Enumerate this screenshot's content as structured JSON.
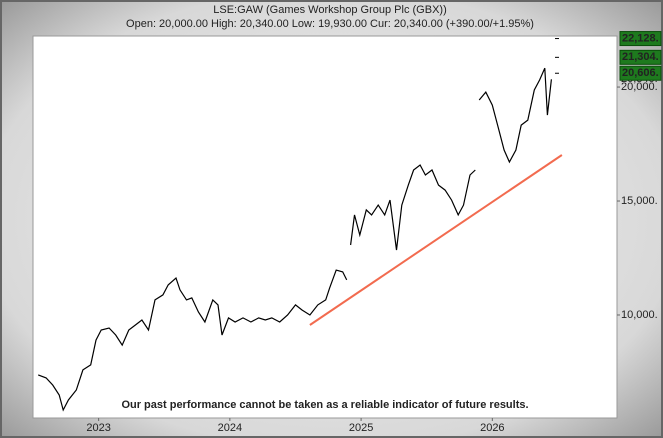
{
  "chart_data": {
    "type": "line",
    "title": "LSE:GAW (Games Workshop Group Plc (GBX))",
    "subtitle": "Open: 20,000.00 High: 20,340.00 Low: 19,930.00 Cur: 20,340.00 (+390.00/+1.95%)",
    "x": [
      2022.54,
      2022.6,
      2022.65,
      2022.7,
      2022.73,
      2022.77,
      2022.83,
      2022.88,
      2022.94,
      2022.98,
      2023.02,
      2023.08,
      2023.13,
      2023.18,
      2023.23,
      2023.28,
      2023.33,
      2023.38,
      2023.43,
      2023.49,
      2023.53,
      2023.59,
      2023.62,
      2023.67,
      2023.71,
      2023.76,
      2023.81,
      2023.87,
      2023.91,
      2023.94,
      2023.99,
      2024.04,
      2024.1,
      2024.16,
      2024.22,
      2024.27,
      2024.32,
      2024.38,
      2024.44,
      2024.5,
      2024.55,
      2024.61,
      2024.67,
      2024.73,
      2024.76,
      2024.81,
      2024.86,
      2024.89,
      2024.91,
      2024.92,
      2024.95,
      2024.99,
      2025.04,
      2025.08,
      2025.13,
      2025.18,
      2025.22,
      2025.27,
      2025.31,
      2025.36,
      2025.4,
      2025.45,
      2025.49,
      2025.54,
      2025.59,
      2025.64,
      2025.69,
      2025.74,
      2025.78,
      2025.83,
      2025.87,
      2025.89,
      2025.9,
      2025.95,
      2026.0,
      2026.04,
      2026.09,
      2026.13,
      2026.18,
      2026.22,
      2026.27,
      2026.32,
      2026.36,
      2026.4,
      2026.42,
      2026.45
    ],
    "series": [
      {
        "color": "#000000",
        "values": [
          7370,
          7240,
          6930,
          6490,
          5830,
          6270,
          6710,
          7590,
          7810,
          8900,
          9340,
          9430,
          9120,
          8680,
          9340,
          9560,
          9780,
          9340,
          10660,
          10880,
          11320,
          11620,
          11100,
          10660,
          10750,
          10130,
          9690,
          10660,
          10440,
          9120,
          9870,
          9690,
          9870,
          9690,
          9870,
          9780,
          9870,
          9690,
          10000,
          10440,
          10220,
          10000,
          10440,
          10660,
          11180,
          11970,
          11890,
          11540,
          null,
          13070,
          14390,
          13510,
          14610,
          14390,
          14820,
          14390,
          15040,
          12850,
          14820,
          15700,
          16360,
          16580,
          16140,
          16360,
          15700,
          15480,
          15040,
          14390,
          14820,
          16140,
          16360,
          null,
          19430,
          19780,
          19210,
          18330,
          17240,
          16710,
          17240,
          18330,
          18550,
          19870,
          20310,
          20830,
          18770,
          20340
        ]
      }
    ],
    "trendline": {
      "x": [
        2024.61,
        2026.53
      ],
      "values": [
        9560,
        17020
      ],
      "color": "#f26b4f"
    },
    "targets": [
      {
        "value": 22128,
        "label": "22,128."
      },
      {
        "value": 21304,
        "label": "21,304."
      },
      {
        "value": 20606,
        "label": "20,606."
      }
    ],
    "target_color": "#1e7a1e",
    "current": {
      "value": 20340,
      "label": "20,340."
    },
    "annotation": "Our past performance cannot be taken as a reliable indicator of future results.",
    "xlim": [
      2022.5,
      2026.95
    ],
    "ylim": [
      5480,
      22240
    ],
    "xticks": [
      2023,
      2024,
      2025,
      2026
    ],
    "yticks": [
      {
        "value": 10000,
        "label": "10,000."
      },
      {
        "value": 15000,
        "label": "15,000."
      },
      {
        "value": 20000,
        "label": "20,000."
      }
    ]
  }
}
